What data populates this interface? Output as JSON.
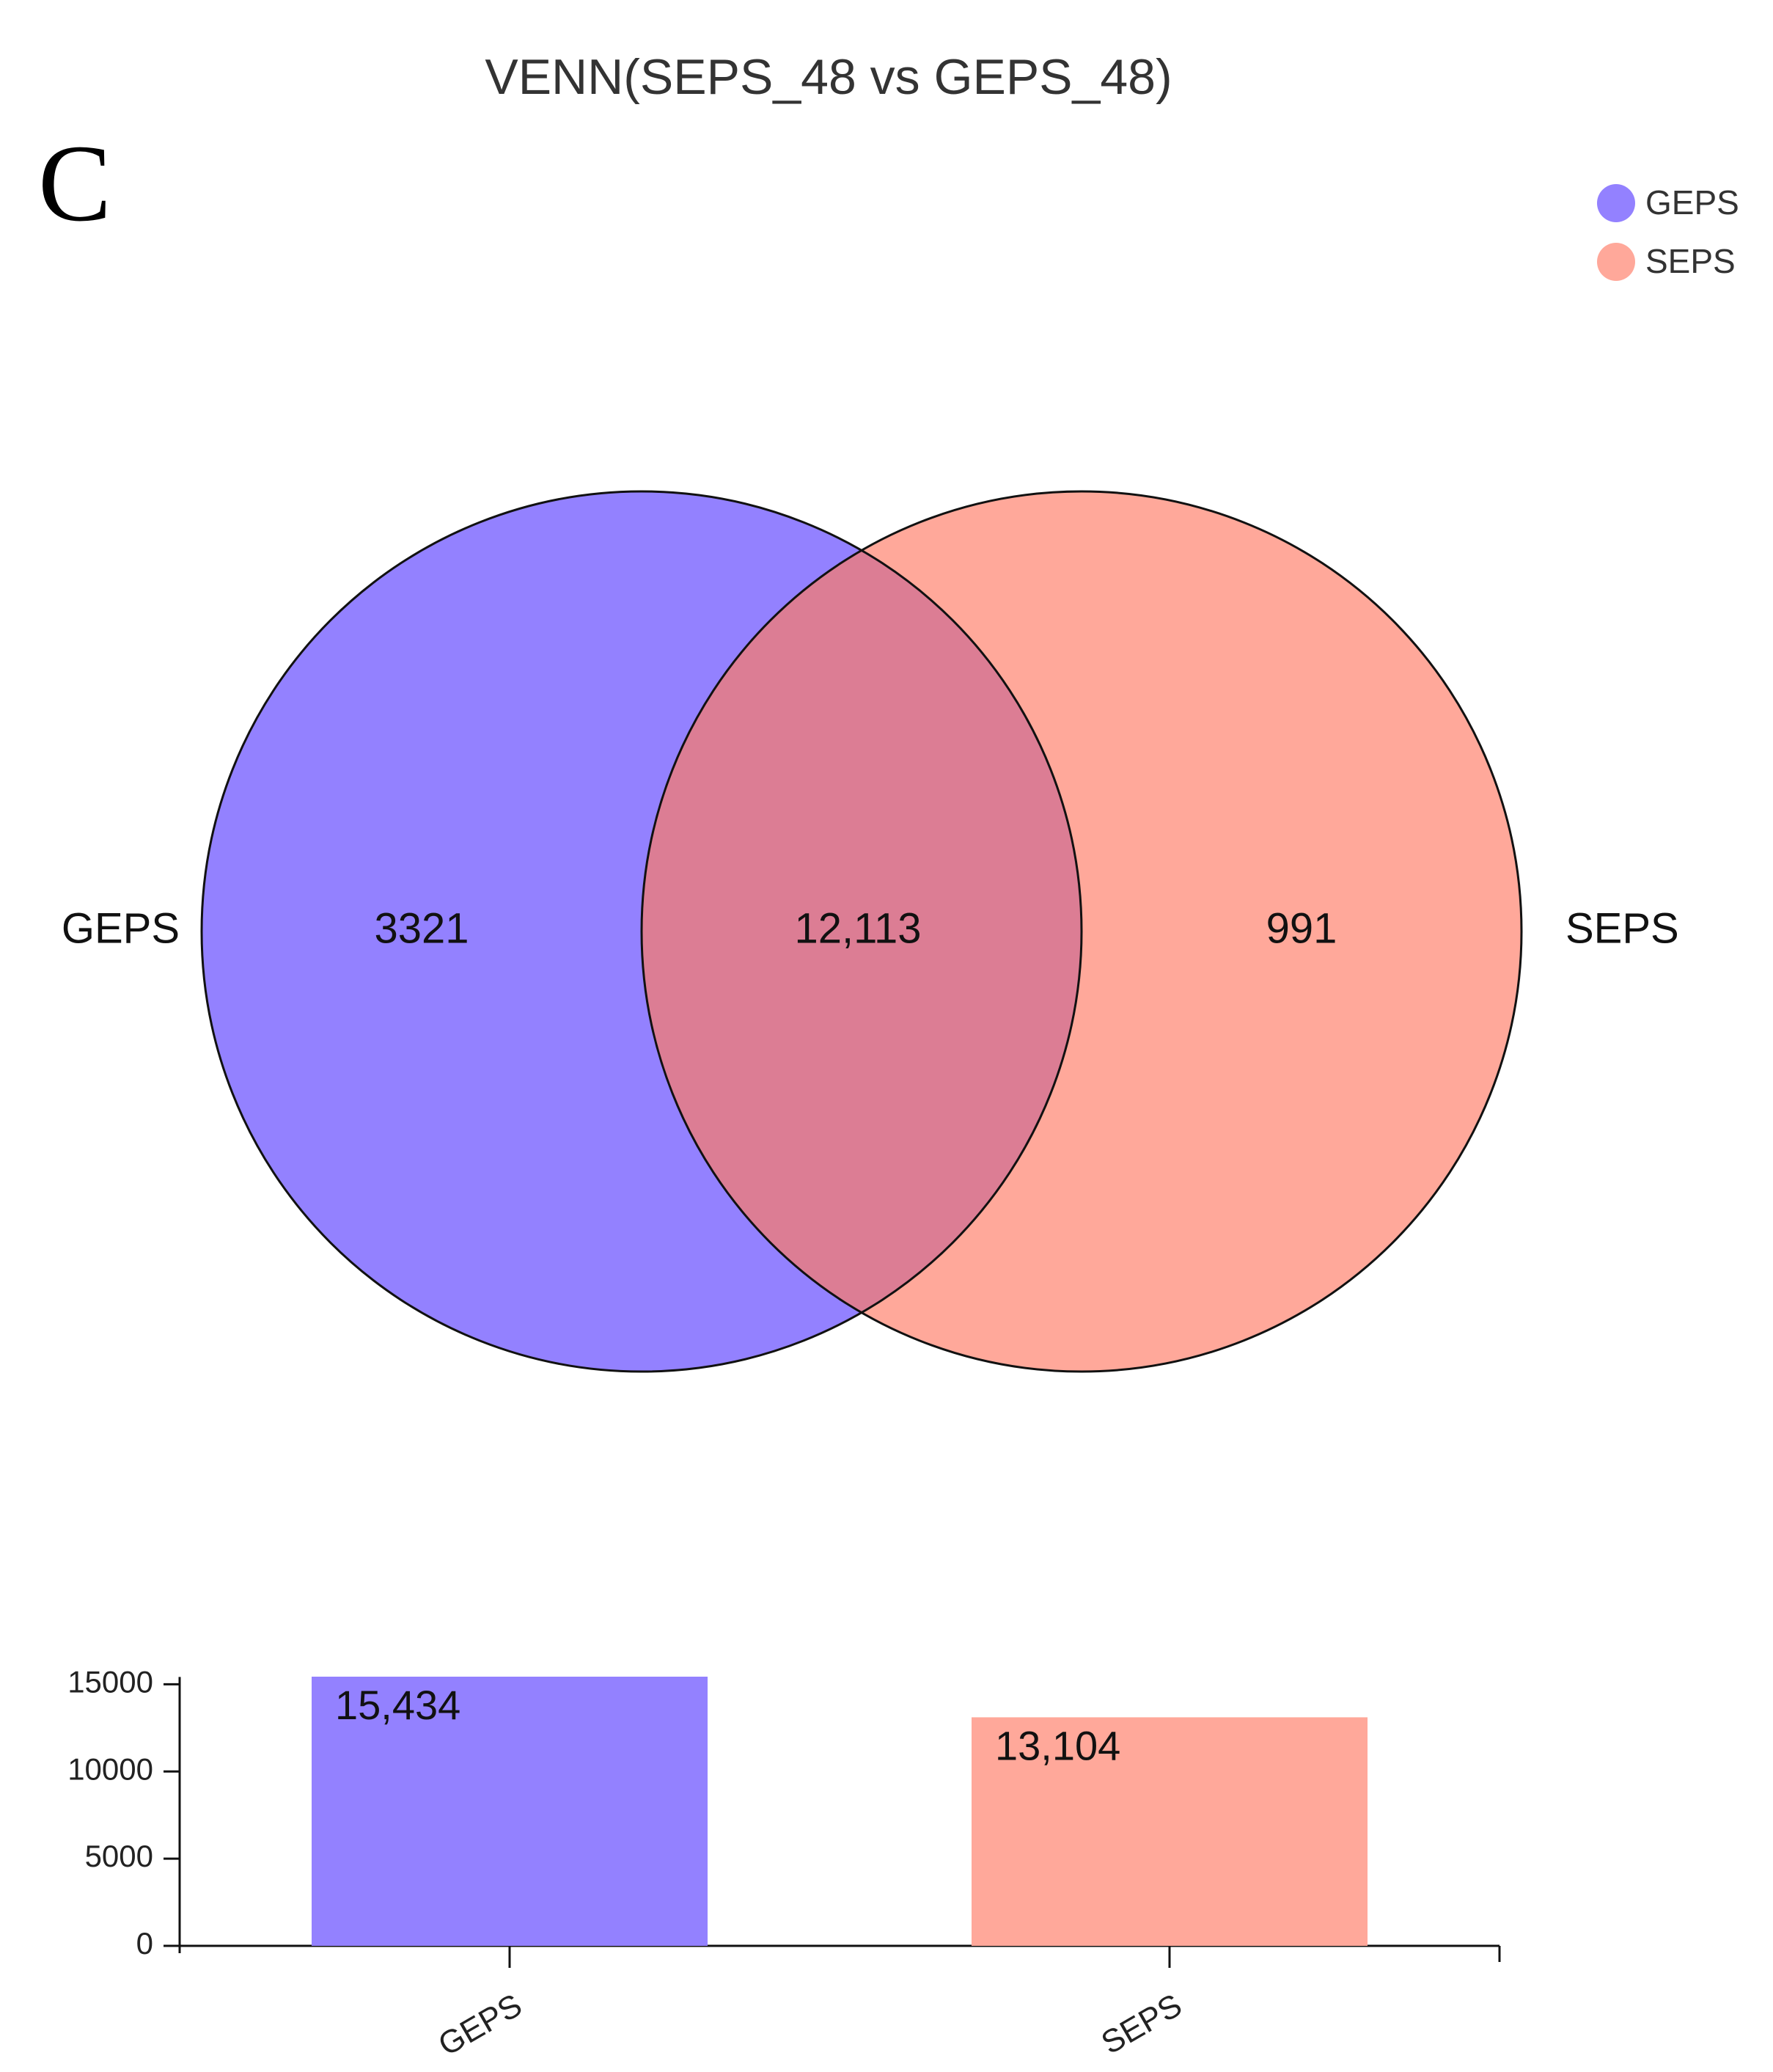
{
  "panel_label": "C",
  "title": "VENN(SEPS_48 vs GEPS_48)",
  "colors": {
    "GEPS": "#9381FF",
    "SEPS": "#FFA89A",
    "overlap": "#DC7D94",
    "outline": "#111111",
    "text": "#111111"
  },
  "chart_data": [
    {
      "type": "venn",
      "title": "VENN(SEPS_48 vs GEPS_48)",
      "sets": [
        {
          "name": "GEPS",
          "label": "GEPS",
          "unique": 3321,
          "unique_label": "3321"
        },
        {
          "name": "SEPS",
          "label": "SEPS",
          "unique": 991,
          "unique_label": "991"
        }
      ],
      "intersection": {
        "sets": [
          "GEPS",
          "SEPS"
        ],
        "value": 12113,
        "label": "12,113"
      },
      "legend": {
        "placement": "top-right",
        "entries": [
          "GEPS",
          "SEPS"
        ]
      }
    },
    {
      "type": "bar",
      "categories": [
        "GEPS",
        "SEPS"
      ],
      "values": [
        15434,
        13104
      ],
      "value_labels": [
        "15,434",
        "13,104"
      ],
      "ylim": [
        0,
        15434
      ],
      "yticks": [
        0,
        5000,
        10000,
        15000
      ],
      "ytick_labels": [
        "0",
        "5000",
        "10000",
        "15000"
      ],
      "xlabel": "",
      "ylabel": ""
    }
  ]
}
